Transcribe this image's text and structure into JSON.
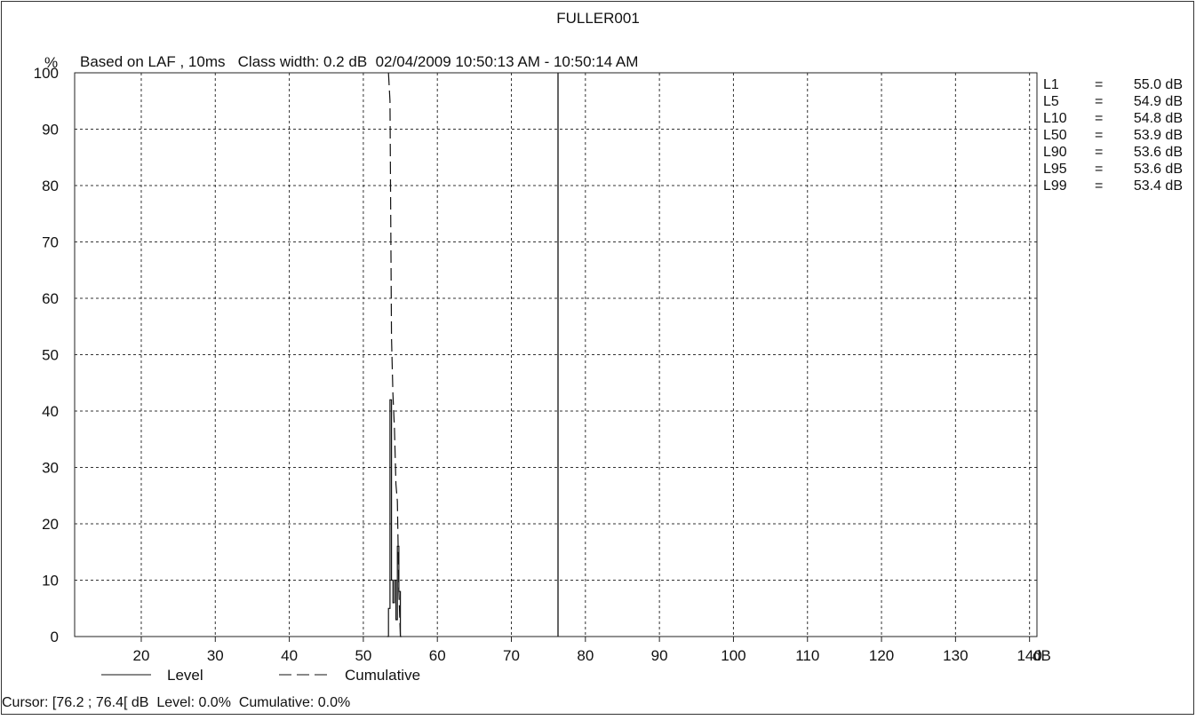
{
  "chart_data": {
    "type": "line",
    "title": "FULLER001",
    "subtitle": "Based on LAF , 10ms   Class width: 0.2 dB  02/04/2009 10:50:13 AM - 10:50:14 AM",
    "ylabel": "%",
    "xlabel": "dB",
    "xlim": [
      11,
      141
    ],
    "ylim": [
      0,
      100
    ],
    "x_ticks": [
      20,
      30,
      40,
      50,
      60,
      70,
      80,
      90,
      100,
      110,
      120,
      130,
      140
    ],
    "y_ticks": [
      0,
      10,
      20,
      30,
      40,
      50,
      60,
      70,
      80,
      90,
      100
    ],
    "grid": true,
    "legend_position": "bottom-left",
    "series": [
      {
        "name": "Level",
        "style": "solid",
        "x": [
          53.2,
          53.4,
          53.4,
          53.6,
          53.6,
          53.8,
          53.8,
          54.0,
          54.0,
          54.2,
          54.2,
          54.4,
          54.4,
          54.6,
          54.6,
          54.8,
          54.8,
          55.0,
          55.0,
          55.2
        ],
        "y": [
          0,
          0,
          5,
          5,
          42,
          42,
          10,
          10,
          6,
          6,
          10,
          10,
          3,
          3,
          16,
          16,
          8,
          8,
          0,
          0
        ]
      },
      {
        "name": "Cumulative",
        "style": "dashed",
        "x": [
          53.4,
          53.6,
          53.8,
          54.0,
          54.2,
          54.4,
          54.6,
          54.8,
          55.0,
          55.2
        ],
        "y": [
          100,
          95,
          53,
          43,
          37,
          27,
          24,
          8,
          0,
          0
        ]
      }
    ],
    "cursor": {
      "x": 76.3,
      "text": "Cursor: [76.2 ; 76.4[ dB  Level: 0.0%  Cumulative: 0.0%"
    },
    "statistics": [
      {
        "label": "L1",
        "eq": "=",
        "value": "55.0 dB"
      },
      {
        "label": "L5",
        "eq": "=",
        "value": "54.9 dB"
      },
      {
        "label": "L10",
        "eq": "=",
        "value": "54.8 dB"
      },
      {
        "label": "L50",
        "eq": "=",
        "value": "53.9 dB"
      },
      {
        "label": "L90",
        "eq": "=",
        "value": "53.6 dB"
      },
      {
        "label": "L95",
        "eq": "=",
        "value": "53.6 dB"
      },
      {
        "label": "L99",
        "eq": "=",
        "value": "53.4 dB"
      }
    ]
  }
}
